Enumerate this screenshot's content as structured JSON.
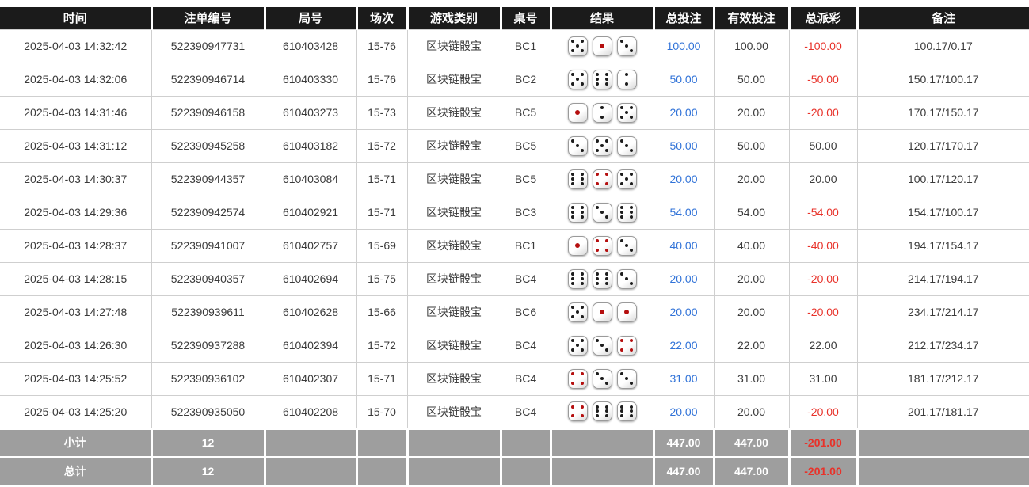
{
  "colors": {
    "header_bg": "#1b1b1b",
    "header_text": "#ffffff",
    "bet_amount_blue": "#3173d8",
    "negative_red": "#e8322a",
    "summary_bg": "#9e9e9e",
    "summary_text": "#ffffff",
    "dice_pip_black": "#1c1c1c",
    "dice_pip_red": "#b50f0f"
  },
  "table": {
    "columns": [
      {
        "key": "time",
        "label": "时间"
      },
      {
        "key": "bet_id",
        "label": "注单编号"
      },
      {
        "key": "round_id",
        "label": "局号"
      },
      {
        "key": "session",
        "label": "场次"
      },
      {
        "key": "game_type",
        "label": "游戏类别"
      },
      {
        "key": "table_no",
        "label": "桌号"
      },
      {
        "key": "result",
        "label": "结果"
      },
      {
        "key": "total_bet",
        "label": "总投注"
      },
      {
        "key": "valid_bet",
        "label": "有效投注"
      },
      {
        "key": "total_payout",
        "label": "总派彩"
      },
      {
        "key": "remark",
        "label": "备注"
      }
    ],
    "rows": [
      {
        "time": "2025-04-03 14:32:42",
        "bet_id": "522390947731",
        "round_id": "610403428",
        "session": "15-76",
        "game_type": "区块链骰宝",
        "table_no": "BC1",
        "dice": [
          5,
          1,
          3
        ],
        "total_bet": "100.00",
        "valid_bet": "100.00",
        "total_payout": "-100.00",
        "remark": "100.17/0.17"
      },
      {
        "time": "2025-04-03 14:32:06",
        "bet_id": "522390946714",
        "round_id": "610403330",
        "session": "15-76",
        "game_type": "区块链骰宝",
        "table_no": "BC2",
        "dice": [
          5,
          6,
          2
        ],
        "total_bet": "50.00",
        "valid_bet": "50.00",
        "total_payout": "-50.00",
        "remark": "150.17/100.17"
      },
      {
        "time": "2025-04-03 14:31:46",
        "bet_id": "522390946158",
        "round_id": "610403273",
        "session": "15-73",
        "game_type": "区块链骰宝",
        "table_no": "BC5",
        "dice": [
          1,
          2,
          5
        ],
        "total_bet": "20.00",
        "valid_bet": "20.00",
        "total_payout": "-20.00",
        "remark": "170.17/150.17"
      },
      {
        "time": "2025-04-03 14:31:12",
        "bet_id": "522390945258",
        "round_id": "610403182",
        "session": "15-72",
        "game_type": "区块链骰宝",
        "table_no": "BC5",
        "dice": [
          3,
          5,
          3
        ],
        "total_bet": "50.00",
        "valid_bet": "50.00",
        "total_payout": "50.00",
        "remark": "120.17/170.17"
      },
      {
        "time": "2025-04-03 14:30:37",
        "bet_id": "522390944357",
        "round_id": "610403084",
        "session": "15-71",
        "game_type": "区块链骰宝",
        "table_no": "BC5",
        "dice": [
          6,
          4,
          5
        ],
        "total_bet": "20.00",
        "valid_bet": "20.00",
        "total_payout": "20.00",
        "remark": "100.17/120.17"
      },
      {
        "time": "2025-04-03 14:29:36",
        "bet_id": "522390942574",
        "round_id": "610402921",
        "session": "15-71",
        "game_type": "区块链骰宝",
        "table_no": "BC3",
        "dice": [
          6,
          3,
          6
        ],
        "total_bet": "54.00",
        "valid_bet": "54.00",
        "total_payout": "-54.00",
        "remark": "154.17/100.17"
      },
      {
        "time": "2025-04-03 14:28:37",
        "bet_id": "522390941007",
        "round_id": "610402757",
        "session": "15-69",
        "game_type": "区块链骰宝",
        "table_no": "BC1",
        "dice": [
          1,
          4,
          3
        ],
        "total_bet": "40.00",
        "valid_bet": "40.00",
        "total_payout": "-40.00",
        "remark": "194.17/154.17"
      },
      {
        "time": "2025-04-03 14:28:15",
        "bet_id": "522390940357",
        "round_id": "610402694",
        "session": "15-75",
        "game_type": "区块链骰宝",
        "table_no": "BC4",
        "dice": [
          6,
          6,
          3
        ],
        "total_bet": "20.00",
        "valid_bet": "20.00",
        "total_payout": "-20.00",
        "remark": "214.17/194.17"
      },
      {
        "time": "2025-04-03 14:27:48",
        "bet_id": "522390939611",
        "round_id": "610402628",
        "session": "15-66",
        "game_type": "区块链骰宝",
        "table_no": "BC6",
        "dice": [
          5,
          1,
          1
        ],
        "total_bet": "20.00",
        "valid_bet": "20.00",
        "total_payout": "-20.00",
        "remark": "234.17/214.17"
      },
      {
        "time": "2025-04-03 14:26:30",
        "bet_id": "522390937288",
        "round_id": "610402394",
        "session": "15-72",
        "game_type": "区块链骰宝",
        "table_no": "BC4",
        "dice": [
          5,
          3,
          4
        ],
        "total_bet": "22.00",
        "valid_bet": "22.00",
        "total_payout": "22.00",
        "remark": "212.17/234.17"
      },
      {
        "time": "2025-04-03 14:25:52",
        "bet_id": "522390936102",
        "round_id": "610402307",
        "session": "15-71",
        "game_type": "区块链骰宝",
        "table_no": "BC4",
        "dice": [
          4,
          3,
          3
        ],
        "total_bet": "31.00",
        "valid_bet": "31.00",
        "total_payout": "31.00",
        "remark": "181.17/212.17"
      },
      {
        "time": "2025-04-03 14:25:20",
        "bet_id": "522390935050",
        "round_id": "610402208",
        "session": "15-70",
        "game_type": "区块链骰宝",
        "table_no": "BC4",
        "dice": [
          4,
          6,
          6
        ],
        "total_bet": "20.00",
        "valid_bet": "20.00",
        "total_payout": "-20.00",
        "remark": "201.17/181.17"
      }
    ],
    "summary_rows": [
      {
        "label": "小计",
        "count": "12",
        "total_bet": "447.00",
        "valid_bet": "447.00",
        "total_payout": "-201.00",
        "remark": ""
      },
      {
        "label": "总计",
        "count": "12",
        "total_bet": "447.00",
        "valid_bet": "447.00",
        "total_payout": "-201.00",
        "remark": ""
      }
    ]
  }
}
